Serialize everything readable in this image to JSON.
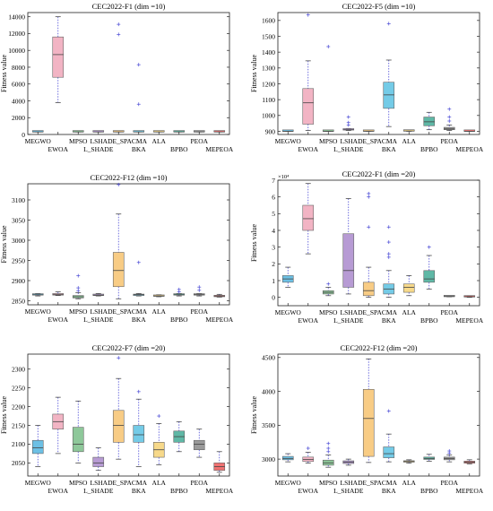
{
  "figure": {
    "ylabel": "Fitness value"
  },
  "chart_data": [
    {
      "type": "box",
      "title": "CEC2022-F1 (dim =10)",
      "ylabel": "Fitness value",
      "ylim": [
        0,
        14500
      ],
      "yticks": [
        0,
        2000,
        4000,
        6000,
        8000,
        10000,
        12000,
        14000
      ],
      "ytick_labels": [
        "0",
        "2000",
        "4000",
        "6000",
        "8000",
        "10000",
        "12000",
        "14000"
      ],
      "categories": [
        "MEGWO",
        "EWOA",
        "MPSO",
        "L_SHADE",
        "LSHADE_SPACMA",
        "BKA",
        "ALA",
        "BPBO",
        "PEOA",
        "MEPEOA"
      ],
      "boxes": [
        {
          "min": 300,
          "q1": 300,
          "median": 300,
          "q3": 300,
          "max": 300,
          "outliers": []
        },
        {
          "min": 3800,
          "q1": 6800,
          "median": 9500,
          "q3": 11600,
          "max": 14000,
          "outliers": []
        },
        {
          "min": 300,
          "q1": 300,
          "median": 300,
          "q3": 300,
          "max": 300,
          "outliers": []
        },
        {
          "min": 300,
          "q1": 300,
          "median": 300,
          "q3": 300,
          "max": 300,
          "outliers": []
        },
        {
          "min": 300,
          "q1": 300,
          "median": 300,
          "q3": 300,
          "max": 300,
          "outliers": [
            13100,
            11900
          ]
        },
        {
          "min": 300,
          "q1": 300,
          "median": 300,
          "q3": 300,
          "max": 300,
          "outliers": [
            8300,
            3600
          ]
        },
        {
          "min": 300,
          "q1": 300,
          "median": 300,
          "q3": 300,
          "max": 300,
          "outliers": []
        },
        {
          "min": 300,
          "q1": 300,
          "median": 300,
          "q3": 300,
          "max": 300,
          "outliers": []
        },
        {
          "min": 300,
          "q1": 300,
          "median": 300,
          "q3": 300,
          "max": 300,
          "outliers": []
        },
        {
          "min": 300,
          "q1": 300,
          "median": 300,
          "q3": 300,
          "max": 300,
          "outliers": []
        }
      ]
    },
    {
      "type": "box",
      "title": "CEC2022-F5 (dim =10)",
      "ylabel": "Fitness value",
      "ylim": [
        880,
        1650
      ],
      "yticks": [
        900,
        1000,
        1100,
        1200,
        1300,
        1400,
        1500,
        1600
      ],
      "ytick_labels": [
        "900",
        "1000",
        "1100",
        "1200",
        "1300",
        "1400",
        "1500",
        "1600"
      ],
      "categories": [
        "MEGWO",
        "EWOA",
        "MPSO",
        "L_SHADE",
        "LSHADE_SPACMA",
        "BKA",
        "ALA",
        "BPBO",
        "PEOA",
        "MEPEOA"
      ],
      "boxes": [
        {
          "min": 900,
          "q1": 900,
          "median": 900,
          "q3": 901,
          "max": 902,
          "outliers": []
        },
        {
          "min": 905,
          "q1": 945,
          "median": 1080,
          "q3": 1170,
          "max": 1345,
          "outliers": [
            1635
          ]
        },
        {
          "min": 900,
          "q1": 900,
          "median": 900,
          "q3": 901,
          "max": 902,
          "outliers": [
            1435
          ]
        },
        {
          "min": 905,
          "q1": 908,
          "median": 910,
          "q3": 915,
          "max": 918,
          "outliers": [
            940,
            955,
            990
          ]
        },
        {
          "min": 900,
          "q1": 900,
          "median": 901,
          "q3": 902,
          "max": 903,
          "outliers": []
        },
        {
          "min": 930,
          "q1": 1045,
          "median": 1130,
          "q3": 1210,
          "max": 1350,
          "outliers": [
            1580
          ]
        },
        {
          "min": 900,
          "q1": 901,
          "median": 902,
          "q3": 903,
          "max": 905,
          "outliers": []
        },
        {
          "min": 910,
          "q1": 935,
          "median": 960,
          "q3": 990,
          "max": 1020,
          "outliers": []
        },
        {
          "min": 905,
          "q1": 910,
          "median": 915,
          "q3": 925,
          "max": 940,
          "outliers": [
            965,
            990,
            1040
          ]
        },
        {
          "min": 900,
          "q1": 900,
          "median": 900,
          "q3": 901,
          "max": 902,
          "outliers": []
        }
      ]
    },
    {
      "type": "box",
      "title": "CEC2022-F12 (dim =10)",
      "ylabel": "Fitness value",
      "ylim": [
        2840,
        3140
      ],
      "yticks": [
        2850,
        2900,
        2950,
        3000,
        3050,
        3100
      ],
      "ytick_labels": [
        "2850",
        "2900",
        "2950",
        "3000",
        "3050",
        "3100"
      ],
      "categories": [
        "MEGWO",
        "EWOA",
        "MPSO",
        "L_SHADE",
        "LSHADE_SPACMA",
        "BKA",
        "ALA",
        "BPBO",
        "PEOA",
        "MEPEOA"
      ],
      "boxes": [
        {
          "min": 2862,
          "q1": 2864,
          "median": 2865,
          "q3": 2866,
          "max": 2868,
          "outliers": []
        },
        {
          "min": 2863,
          "q1": 2864,
          "median": 2866,
          "q3": 2868,
          "max": 2872,
          "outliers": []
        },
        {
          "min": 2855,
          "q1": 2857,
          "median": 2860,
          "q3": 2863,
          "max": 2870,
          "outliers": [
            2875,
            2882,
            2912
          ]
        },
        {
          "min": 2862,
          "q1": 2863,
          "median": 2864,
          "q3": 2865,
          "max": 2868,
          "outliers": []
        },
        {
          "min": 2855,
          "q1": 2885,
          "median": 2925,
          "q3": 2970,
          "max": 3065,
          "outliers": [
            3138
          ]
        },
        {
          "min": 2862,
          "q1": 2863,
          "median": 2865,
          "q3": 2866,
          "max": 2868,
          "outliers": [
            2945
          ]
        },
        {
          "min": 2860,
          "q1": 2861,
          "median": 2862,
          "q3": 2863,
          "max": 2865,
          "outliers": []
        },
        {
          "min": 2862,
          "q1": 2864,
          "median": 2865,
          "q3": 2866,
          "max": 2868,
          "outliers": [
            2872,
            2878
          ]
        },
        {
          "min": 2862,
          "q1": 2864,
          "median": 2865,
          "q3": 2866,
          "max": 2868,
          "outliers": [
            2876,
            2884
          ]
        },
        {
          "min": 2859,
          "q1": 2860,
          "median": 2862,
          "q3": 2863,
          "max": 2866,
          "outliers": []
        }
      ]
    },
    {
      "type": "box",
      "title": "CEC2022-F1 (dim =20)",
      "ylabel": "Fitness value",
      "yexp": "×10⁴",
      "ylim": [
        -0.5,
        7
      ],
      "yticks": [
        0,
        1,
        2,
        3,
        4,
        5,
        6,
        7
      ],
      "ytick_labels": [
        "0",
        "1",
        "2",
        "3",
        "4",
        "5",
        "6",
        "7"
      ],
      "categories": [
        "MEGWO",
        "EWOA",
        "MPSO",
        "L_SHADE",
        "LSHADE_SPACMA",
        "BKA",
        "ALA",
        "BPBO",
        "PEOA",
        "MEPEOA"
      ],
      "boxes": [
        {
          "min": 0.6,
          "q1": 0.9,
          "median": 1.1,
          "q3": 1.3,
          "max": 1.8,
          "outliers": []
        },
        {
          "min": 2.6,
          "q1": 4.0,
          "median": 4.7,
          "q3": 5.5,
          "max": 6.8,
          "outliers": []
        },
        {
          "min": 0.1,
          "q1": 0.2,
          "median": 0.3,
          "q3": 0.4,
          "max": 0.6,
          "outliers": [
            0.8
          ]
        },
        {
          "min": 0.2,
          "q1": 0.6,
          "median": 1.6,
          "q3": 3.8,
          "max": 5.9,
          "outliers": []
        },
        {
          "min": 0.0,
          "q1": 0.1,
          "median": 0.4,
          "q3": 0.9,
          "max": 1.8,
          "outliers": [
            4.2,
            6.0,
            6.2
          ]
        },
        {
          "min": 0.0,
          "q1": 0.2,
          "median": 0.5,
          "q3": 0.8,
          "max": 1.6,
          "outliers": [
            2.4,
            2.6,
            3.3,
            4.2
          ]
        },
        {
          "min": 0.1,
          "q1": 0.3,
          "median": 0.6,
          "q3": 0.8,
          "max": 1.3,
          "outliers": []
        },
        {
          "min": 0.5,
          "q1": 0.9,
          "median": 1.1,
          "q3": 1.6,
          "max": 2.5,
          "outliers": [
            3.0
          ]
        },
        {
          "min": 0.03,
          "q1": 0.04,
          "median": 0.05,
          "q3": 0.06,
          "max": 0.08,
          "outliers": []
        },
        {
          "min": 0.0,
          "q1": 0.02,
          "median": 0.04,
          "q3": 0.06,
          "max": 0.1,
          "outliers": []
        }
      ]
    },
    {
      "type": "box",
      "title": "CEC2022-F7 (dim =20)",
      "ylabel": "Fitness value",
      "ylim": [
        2015,
        2340
      ],
      "yticks": [
        2050,
        2100,
        2150,
        2200,
        2250,
        2300
      ],
      "ytick_labels": [
        "2050",
        "2100",
        "2150",
        "2200",
        "2250",
        "2300"
      ],
      "categories": [
        "MEGWO",
        "EWOA",
        "MPSO",
        "L_SHADE",
        "LSHADE_SPACMA",
        "BKA",
        "ALA",
        "BPBO",
        "PEOA",
        "MEPEOA"
      ],
      "boxes": [
        {
          "min": 2040,
          "q1": 2075,
          "median": 2090,
          "q3": 2110,
          "max": 2150,
          "outliers": []
        },
        {
          "min": 2075,
          "q1": 2140,
          "median": 2160,
          "q3": 2180,
          "max": 2225,
          "outliers": []
        },
        {
          "min": 2050,
          "q1": 2080,
          "median": 2100,
          "q3": 2145,
          "max": 2215,
          "outliers": []
        },
        {
          "min": 2030,
          "q1": 2040,
          "median": 2050,
          "q3": 2065,
          "max": 2090,
          "outliers": []
        },
        {
          "min": 2060,
          "q1": 2105,
          "median": 2150,
          "q3": 2190,
          "max": 2275,
          "outliers": [
            2330
          ]
        },
        {
          "min": 2040,
          "q1": 2105,
          "median": 2125,
          "q3": 2150,
          "max": 2220,
          "outliers": [
            2240
          ]
        },
        {
          "min": 2045,
          "q1": 2065,
          "median": 2085,
          "q3": 2105,
          "max": 2155,
          "outliers": [
            2175
          ]
        },
        {
          "min": 2080,
          "q1": 2105,
          "median": 2120,
          "q3": 2135,
          "max": 2160,
          "outliers": []
        },
        {
          "min": 2065,
          "q1": 2085,
          "median": 2100,
          "q3": 2110,
          "max": 2140,
          "outliers": []
        },
        {
          "min": 2025,
          "q1": 2030,
          "median": 2040,
          "q3": 2050,
          "max": 2080,
          "outliers": []
        }
      ]
    },
    {
      "type": "box",
      "title": "CEC2022-F12 (dim =20)",
      "ylabel": "Fitness value",
      "ylim": [
        2750,
        4550
      ],
      "yticks": [
        3000,
        3500,
        4000,
        4500
      ],
      "ytick_labels": [
        "3000",
        "3500",
        "4000",
        "4500"
      ],
      "categories": [
        "MEGWO",
        "EWOA",
        "MPSO",
        "L_SHADE",
        "LSHADE_SPACMA",
        "BKA",
        "ALA",
        "BPBO",
        "PEOA",
        "MEPEOA"
      ],
      "boxes": [
        {
          "min": 2960,
          "q1": 2990,
          "median": 3010,
          "q3": 3040,
          "max": 3080,
          "outliers": []
        },
        {
          "min": 2940,
          "q1": 2965,
          "median": 2995,
          "q3": 3030,
          "max": 3100,
          "outliers": [
            3160
          ]
        },
        {
          "min": 2880,
          "q1": 2910,
          "median": 2945,
          "q3": 2985,
          "max": 3060,
          "outliers": [
            3110,
            3160,
            3230
          ]
        },
        {
          "min": 2910,
          "q1": 2935,
          "median": 2955,
          "q3": 2975,
          "max": 3000,
          "outliers": []
        },
        {
          "min": 2950,
          "q1": 3040,
          "median": 3600,
          "q3": 4030,
          "max": 4480,
          "outliers": []
        },
        {
          "min": 2960,
          "q1": 3020,
          "median": 3080,
          "q3": 3180,
          "max": 3370,
          "outliers": [
            3710
          ]
        },
        {
          "min": 2940,
          "q1": 2955,
          "median": 2965,
          "q3": 2975,
          "max": 2990,
          "outliers": []
        },
        {
          "min": 2970,
          "q1": 2995,
          "median": 3010,
          "q3": 3030,
          "max": 3070,
          "outliers": []
        },
        {
          "min": 2960,
          "q1": 2990,
          "median": 3010,
          "q3": 3030,
          "max": 3060,
          "outliers": [
            3090,
            3120
          ]
        },
        {
          "min": 2930,
          "q1": 2940,
          "median": 2955,
          "q3": 2970,
          "max": 2990,
          "outliers": []
        }
      ]
    }
  ],
  "colors": {
    "MEGWO": "#6cc0e5",
    "EWOA": "#f2b4c4",
    "MPSO": "#8ec89a",
    "L_SHADE": "#b79bd4",
    "LSHADE_SPACMA": "#f8cc85",
    "BKA": "#74cbe7",
    "ALA": "#f7d98a",
    "BPBO": "#5fb8a6",
    "PEOA": "#9a9a9a",
    "MEPEOA": "#f07272",
    "whisker": "#4a4ad6",
    "outlier": "#4a4ad6",
    "median": "#444444"
  }
}
